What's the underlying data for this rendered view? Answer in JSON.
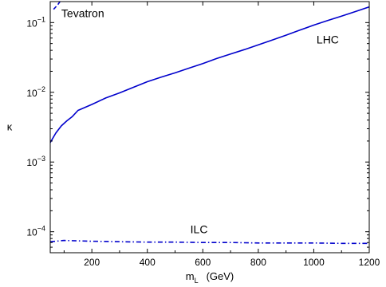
{
  "chart_data": {
    "type": "line",
    "xlabel_main": "m",
    "xlabel_sub": "L",
    "xlabel_unit": "(GeV)",
    "ylabel": "κ",
    "xlim": [
      50,
      1200
    ],
    "ylim": [
      5e-05,
      0.2
    ],
    "yscale": "log",
    "grid": false,
    "legend": "none",
    "x_ticks": [
      200,
      400,
      600,
      800,
      1000,
      1200
    ],
    "x_tick_labels": [
      "200",
      "400",
      "600",
      "800",
      "1000",
      "1200"
    ],
    "y_ticks": [
      0.0001,
      0.001,
      0.01,
      0.1
    ],
    "y_tick_labels": [
      {
        "base": "10",
        "exp": "−4"
      },
      {
        "base": "10",
        "exp": "−3"
      },
      {
        "base": "10",
        "exp": "−2"
      },
      {
        "base": "10",
        "exp": "−1"
      }
    ],
    "color": "#0000cc",
    "series": [
      {
        "name": "LHC",
        "style": "solid",
        "x": [
          50,
          70,
          90,
          110,
          130,
          150,
          200,
          250,
          300,
          350,
          400,
          450,
          500,
          550,
          600,
          650,
          700,
          750,
          800,
          850,
          900,
          950,
          1000,
          1050,
          1100,
          1150,
          1200
        ],
        "y": [
          0.0019,
          0.0026,
          0.0033,
          0.0039,
          0.0045,
          0.0055,
          0.0067,
          0.0083,
          0.0098,
          0.0118,
          0.0142,
          0.0165,
          0.019,
          0.0222,
          0.0258,
          0.0305,
          0.0355,
          0.041,
          0.048,
          0.056,
          0.066,
          0.078,
          0.092,
          0.107,
          0.124,
          0.144,
          0.168
        ]
      },
      {
        "name": "Tevatron",
        "style": "dashed",
        "x": [
          62,
          70,
          78,
          85
        ],
        "y": [
          0.155,
          0.168,
          0.182,
          0.2
        ]
      },
      {
        "name": "ILC",
        "style": "dashdot",
        "x": [
          50,
          100,
          200,
          300,
          400,
          500,
          600,
          700,
          800,
          900,
          1000,
          1100,
          1200
        ],
        "y": [
          7.2e-05,
          7.5e-05,
          7.3e-05,
          7.2e-05,
          7.1e-05,
          7.1e-05,
          7e-05,
          7e-05,
          6.9e-05,
          6.9e-05,
          6.9e-05,
          6.8e-05,
          6.8e-05
        ]
      }
    ],
    "annotations": [
      {
        "text": "Tevatron",
        "x": 90,
        "y": 0.12
      },
      {
        "text": "LHC",
        "x": 1010,
        "y": 0.05
      },
      {
        "text": "ILC",
        "x": 555,
        "y": 9.5e-05
      }
    ]
  }
}
